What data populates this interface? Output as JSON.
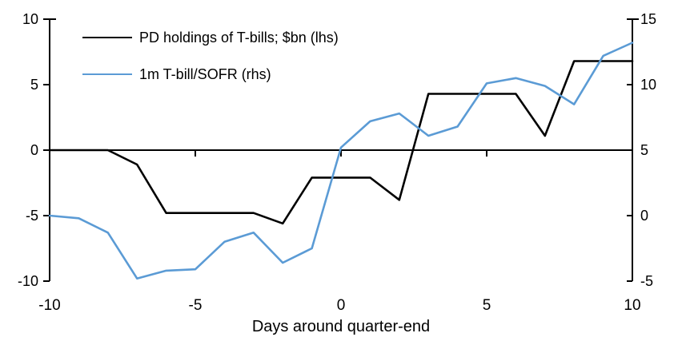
{
  "chart_data": {
    "type": "line",
    "title": "",
    "x_axis": {
      "label": "Days around quarter-end",
      "min": -10,
      "max": 10,
      "ticks": [
        -10,
        -5,
        0,
        5,
        10
      ]
    },
    "left_axis": {
      "min": -10,
      "max": 10,
      "ticks": [
        10,
        5,
        0,
        -5,
        -10
      ]
    },
    "right_axis": {
      "min": -5,
      "max": 15,
      "ticks": [
        15,
        10,
        5,
        0,
        -5
      ]
    },
    "x": [
      -10,
      -9,
      -8,
      -7,
      -6,
      -5,
      -4,
      -3,
      -2,
      -1,
      0,
      1,
      2,
      3,
      4,
      5,
      6,
      7,
      8,
      9,
      10
    ],
    "series": [
      {
        "name": "PD holdings of T-bills; $bn (lhs)",
        "axis": "left",
        "color": "#000000",
        "values": [
          0,
          0,
          0,
          -1.1,
          -4.8,
          -4.8,
          -4.8,
          -4.8,
          -5.6,
          -2.1,
          -2.1,
          -2.1,
          -3.8,
          4.3,
          4.3,
          4.3,
          4.3,
          1.1,
          6.8,
          6.8,
          6.8
        ]
      },
      {
        "name": "1m T-bill/SOFR (rhs)",
        "axis": "right",
        "color": "#5B9BD5",
        "values": [
          0,
          -0.2,
          -1.3,
          -4.8,
          -4.2,
          -4.1,
          -2.0,
          -1.3,
          -3.6,
          -2.5,
          5.2,
          7.2,
          7.8,
          6.1,
          6.8,
          10.1,
          10.5,
          9.9,
          8.5,
          12.2,
          13.2
        ]
      }
    ],
    "legend_position": "top-left",
    "grid": "off",
    "zero_line": true,
    "background": "#FFFFFF"
  },
  "colors": {
    "axis": "#000000",
    "series_pd": "#000000",
    "series_sofr": "#5B9BD5",
    "background": "#FFFFFF"
  }
}
